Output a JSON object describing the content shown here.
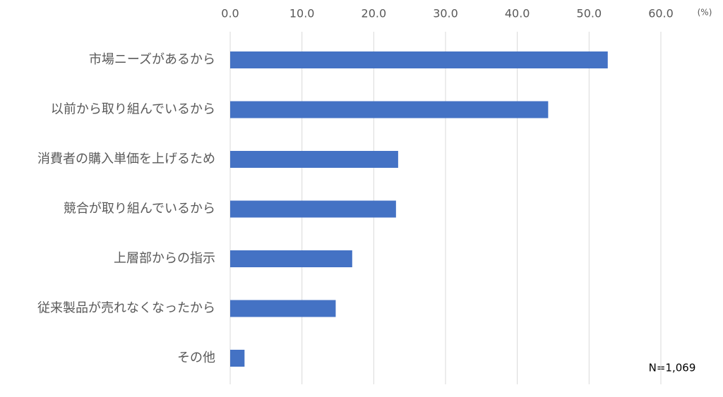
{
  "chart_data": {
    "type": "bar",
    "orientation": "horizontal",
    "categories": [
      "市場ニーズがあるから",
      "以前から取り組んでいるから",
      "消費者の購入単価を上げるため",
      "競合が取り組んでいるから",
      "上層部からの指示",
      "従来製品が売れなくなったから",
      "その他"
    ],
    "values": [
      52.6,
      44.3,
      23.4,
      23.1,
      17.0,
      14.7,
      2.0
    ],
    "color": "#4472c4",
    "xlim": [
      0,
      60
    ],
    "xticks": [
      {
        "value": 0,
        "label": "0.0"
      },
      {
        "value": 10,
        "label": "10.0"
      },
      {
        "value": 20,
        "label": "20.0"
      },
      {
        "value": 30,
        "label": "30.0"
      },
      {
        "value": 40,
        "label": "40.0"
      },
      {
        "value": 50,
        "label": "50.0"
      },
      {
        "value": 60,
        "label": "60.0"
      }
    ],
    "unit_label": "(%)",
    "note": "N=1,069",
    "grid": true
  }
}
